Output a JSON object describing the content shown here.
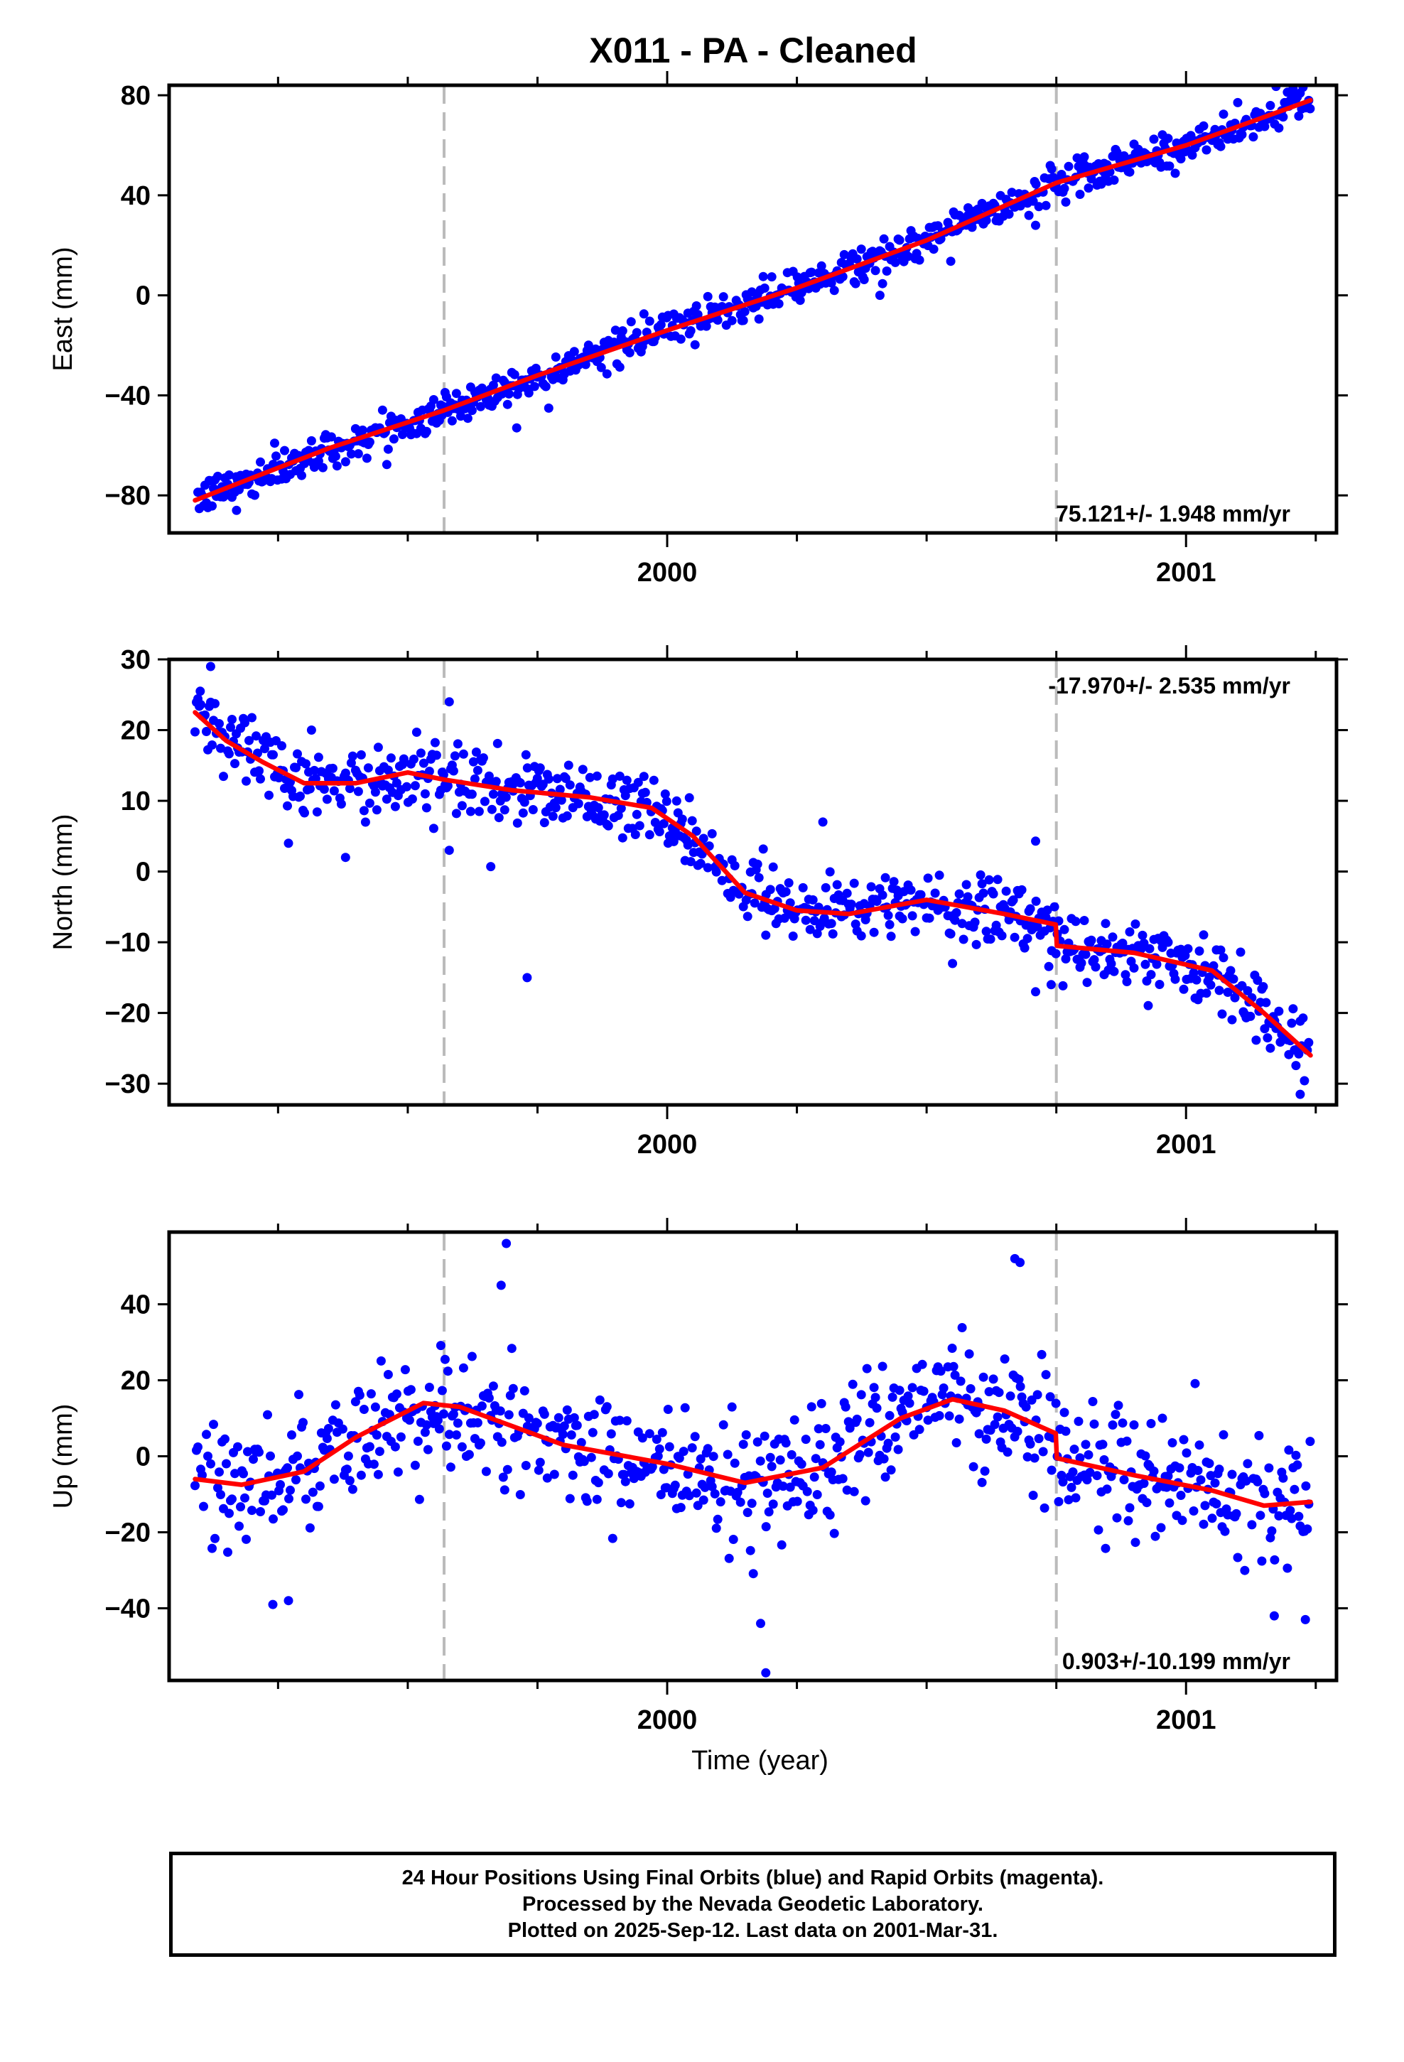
{
  "title": "X011  - PA - Cleaned",
  "footer": {
    "line1": "24 Hour Positions Using Final Orbits (blue) and Rapid Orbits (magenta).",
    "line2": "Processed by the Nevada Geodetic Laboratory.",
    "line3": "Plotted on 2025-Sep-12. Last data on 2001-Mar-31."
  },
  "colors": {
    "points": "#0000ff",
    "model": "#ff0000",
    "events": "#bbbbbb",
    "frame": "#000000"
  },
  "chart_data": [
    {
      "type": "scatter",
      "ylabel": "East (mm)",
      "xlabel": "",
      "xlim": [
        1999.04,
        2001.29
      ],
      "ylim": [
        -95,
        84
      ],
      "xticks": [
        2000,
        2001
      ],
      "yticks": [
        -80,
        -40,
        0,
        40,
        80
      ],
      "rate_label": "75.121+/- 1.948 mm/yr",
      "rate_position": "bottom-right",
      "event_lines_x": [
        1999.57,
        2000.75
      ],
      "model": {
        "name": "trend",
        "x": [
          1999.09,
          1999.2,
          1999.35,
          1999.57,
          1999.75,
          2000.0,
          2000.25,
          2000.5,
          2000.75,
          2001.0,
          2001.24
        ],
        "y": [
          -82,
          -73,
          -61,
          -46,
          -32,
          -14,
          3,
          22,
          45,
          60,
          78
        ]
      },
      "scatter_noise": 3.5,
      "outliers": [
        [
          1999.71,
          -53
        ],
        [
          2000.41,
          0
        ],
        [
          2000.71,
          28
        ],
        [
          2000.58,
          35
        ],
        [
          1999.17,
          -86
        ]
      ]
    },
    {
      "type": "scatter",
      "ylabel": "North (mm)",
      "xlabel": "",
      "xlim": [
        1999.04,
        2001.29
      ],
      "ylim": [
        -33,
        30
      ],
      "xticks": [
        2000,
        2001
      ],
      "yticks": [
        -30,
        -20,
        -10,
        0,
        10,
        20,
        30
      ],
      "rate_label": "-17.970+/- 2.535 mm/yr",
      "rate_position": "top-right",
      "event_lines_x": [
        1999.57,
        2000.75
      ],
      "model": {
        "name": "trend",
        "x": [
          1999.09,
          1999.15,
          1999.22,
          1999.3,
          1999.4,
          1999.5,
          1999.57,
          1999.7,
          1999.85,
          1999.97,
          2000.05,
          2000.15,
          2000.25,
          2000.35,
          2000.5,
          2000.65,
          2000.749,
          2000.751,
          2000.9,
          2001.05,
          2001.15,
          2001.24
        ],
        "y": [
          22.5,
          18.5,
          15.5,
          12.5,
          12.5,
          14,
          13,
          11.5,
          10.5,
          9,
          5,
          -3,
          -5.5,
          -6,
          -4,
          -6,
          -7.5,
          -10.5,
          -11.5,
          -14,
          -20,
          -26
        ]
      },
      "scatter_noise": 2.5,
      "outliers": [
        [
          1999.27,
          4
        ],
        [
          1999.38,
          2
        ],
        [
          1999.58,
          3
        ],
        [
          1999.66,
          0.7
        ],
        [
          1999.73,
          -15
        ],
        [
          2000.19,
          -9
        ],
        [
          2000.3,
          7
        ],
        [
          2000.55,
          -13
        ],
        [
          2000.71,
          4.3
        ],
        [
          2000.71,
          -17
        ],
        [
          2000.74,
          -16
        ],
        [
          2001.22,
          -31.5
        ],
        [
          1999.1,
          25.5
        ],
        [
          1999.12,
          29
        ],
        [
          1999.58,
          24
        ]
      ]
    },
    {
      "type": "scatter",
      "ylabel": "Up (mm)",
      "xlabel": "Time (year)",
      "xlim": [
        1999.04,
        2001.29
      ],
      "ylim": [
        -59,
        59
      ],
      "xticks": [
        2000,
        2001
      ],
      "yticks": [
        -40,
        -20,
        0,
        20,
        40
      ],
      "rate_label": "0.903+/-10.199 mm/yr",
      "rate_position": "bottom-right",
      "event_lines_x": [
        1999.57,
        2000.75
      ],
      "model": {
        "name": "trend",
        "x": [
          1999.09,
          1999.18,
          1999.3,
          1999.4,
          1999.53,
          1999.6,
          1999.8,
          2000.0,
          2000.15,
          2000.3,
          2000.45,
          2000.55,
          2000.65,
          2000.749,
          2000.751,
          2000.9,
          2001.05,
          2001.15,
          2001.24
        ],
        "y": [
          -6,
          -7.5,
          -4,
          5,
          14,
          13,
          3,
          -2,
          -7,
          -3,
          10,
          15,
          12,
          6,
          -0.5,
          -5,
          -9,
          -13,
          -12
        ]
      },
      "scatter_noise": 8,
      "outliers": [
        [
          1999.69,
          56
        ],
        [
          1999.68,
          45
        ],
        [
          2000.67,
          52
        ],
        [
          2000.68,
          51
        ],
        [
          2000.18,
          -44
        ],
        [
          2000.19,
          -57
        ],
        [
          1999.24,
          -39
        ],
        [
          1999.27,
          -38
        ],
        [
          2001.17,
          -42
        ],
        [
          2001.23,
          -43
        ]
      ]
    }
  ]
}
